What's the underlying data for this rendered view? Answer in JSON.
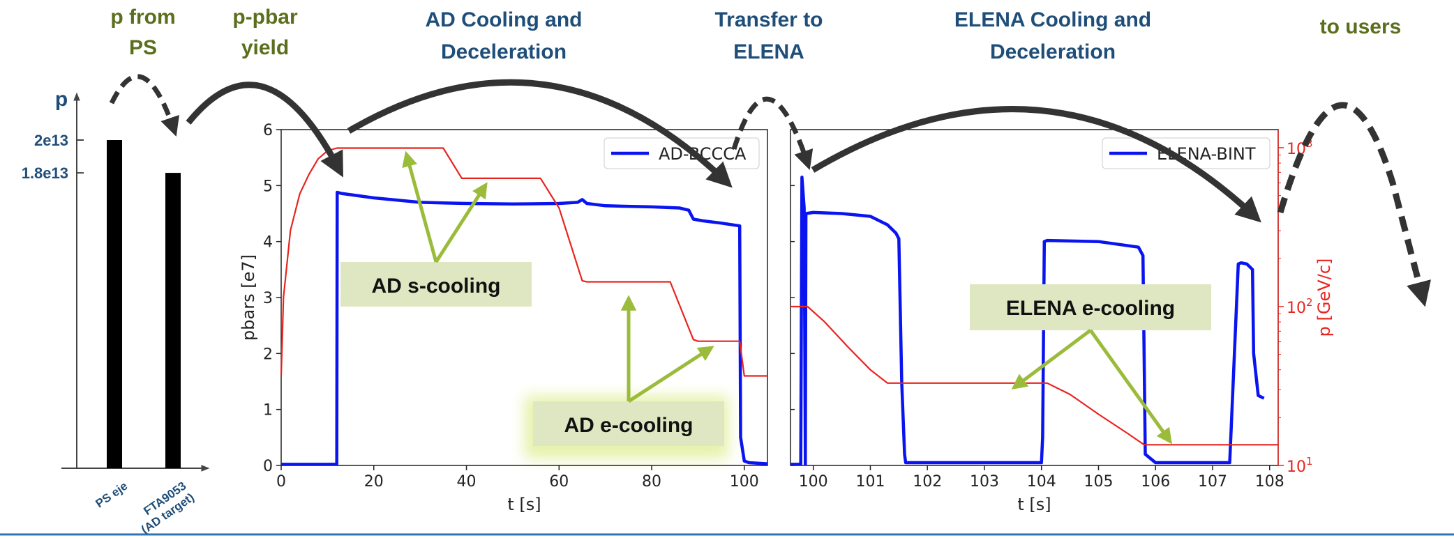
{
  "headers": {
    "p_from_ps": [
      "p from",
      "PS"
    ],
    "p_pbar_yield": [
      "p-pbar",
      "yield"
    ],
    "ad_cooling": [
      "AD Cooling and",
      "Deceleration"
    ],
    "transfer": [
      "Transfer to",
      "ELENA"
    ],
    "elena_cooling": [
      "ELENA Cooling and",
      "Deceleration"
    ],
    "to_users": "to users"
  },
  "annotations": {
    "ad_s_cooling": "AD s-cooling",
    "ad_e_cooling": "AD e-cooling",
    "elena_e_cooling": "ELENA e-cooling"
  },
  "colors": {
    "header_green": "#5a6e1c",
    "header_blue": "#1f4e79",
    "intensity": "#0a14f0",
    "momentum": "#e8241f",
    "annotation_box": "#dfe7c2",
    "annotation_arrow": "#9bbb3b",
    "process_arrow": "#333333"
  },
  "chart_data": [
    {
      "type": "bar",
      "ylabel": "p",
      "categories": [
        "PS eje",
        "FTA9053\n(AD target)"
      ],
      "values": [
        20000000000000.0,
        18000000000000.0
      ],
      "tick_labels": [
        "2e13",
        "1.8e13"
      ]
    },
    {
      "type": "line",
      "xlabel": "t [s]",
      "ylabel": "pbars [e7]",
      "xlim": [
        0,
        105
      ],
      "ylim": [
        0,
        6
      ],
      "xticks": [
        0,
        20,
        40,
        60,
        80,
        100
      ],
      "yticks": [
        0,
        1,
        2,
        3,
        4,
        5,
        6
      ],
      "legend": "top-right",
      "series": [
        {
          "name": "AD-BCCCA",
          "color": "blue",
          "x": [
            0,
            12,
            12.1,
            13,
            20,
            30,
            40,
            50,
            60,
            64,
            65,
            66,
            70,
            80,
            86,
            88,
            89,
            91,
            95,
            99,
            99.2,
            100,
            101,
            105
          ],
          "y": [
            0.02,
            0.02,
            4.88,
            4.86,
            4.78,
            4.7,
            4.68,
            4.67,
            4.68,
            4.7,
            4.75,
            4.68,
            4.64,
            4.62,
            4.6,
            4.56,
            4.4,
            4.37,
            4.33,
            4.28,
            0.5,
            0.08,
            0.05,
            0.03
          ]
        },
        {
          "name": "momentum",
          "color": "red",
          "x": [
            0,
            0.5,
            2,
            4,
            6,
            8,
            10,
            12,
            35,
            39,
            56,
            60,
            65,
            66,
            84,
            89,
            90,
            99,
            100,
            105
          ],
          "y": [
            1.6,
            3.0,
            4.2,
            4.85,
            5.2,
            5.48,
            5.62,
            5.67,
            5.67,
            5.13,
            5.13,
            4.6,
            3.3,
            3.28,
            3.28,
            2.25,
            2.22,
            2.22,
            1.6,
            1.6
          ]
        }
      ]
    },
    {
      "type": "line",
      "xlabel": "t [s]",
      "ylabel": "p [GeV/c]",
      "yscale": "log",
      "xlim": [
        99.6,
        108.15
      ],
      "ylim": [
        10,
        1300
      ],
      "xticks": [
        100,
        101,
        102,
        103,
        104,
        105,
        106,
        107,
        108
      ],
      "yticks": [
        10,
        100,
        1000
      ],
      "ytick_labels": [
        "10",
        "10",
        "10"
      ],
      "ytick_exponents": [
        "1",
        "2",
        "3"
      ],
      "legend": "top-right",
      "series": [
        {
          "name": "ELENA-BINT",
          "color": "blue",
          "x": [
            99.6,
            99.78,
            99.8,
            99.84,
            99.86,
            99.87,
            100.0,
            100.5,
            101.0,
            101.3,
            101.45,
            101.5,
            101.55,
            101.6,
            101.62,
            102.0,
            104.0,
            104.02,
            104.05,
            104.1,
            105.0,
            105.7,
            105.78,
            105.82,
            106.0,
            107.3,
            107.32,
            107.45,
            107.5,
            107.6,
            107.7,
            107.72,
            107.8,
            107.9
          ],
          "y": [
            0.02,
            0.02,
            5.15,
            4.6,
            0.02,
            4.5,
            4.52,
            4.5,
            4.45,
            4.3,
            4.15,
            4.05,
            1.5,
            0.2,
            0.05,
            0.05,
            0.05,
            0.5,
            4.0,
            4.02,
            4.0,
            3.9,
            3.75,
            0.2,
            0.05,
            0.05,
            0.5,
            3.6,
            3.62,
            3.6,
            3.5,
            2.0,
            1.25,
            1.2
          ]
        },
        {
          "name": "momentum",
          "color": "red",
          "x": [
            99.6,
            99.9,
            100.2,
            100.6,
            101.0,
            101.3,
            101.4,
            104.0,
            104.1,
            104.5,
            105.0,
            105.5,
            105.8,
            108.15
          ],
          "y": [
            100,
            100,
            80,
            56,
            40,
            33,
            33,
            33,
            33,
            28,
            21,
            16,
            13.5,
            13.5
          ]
        }
      ]
    }
  ]
}
